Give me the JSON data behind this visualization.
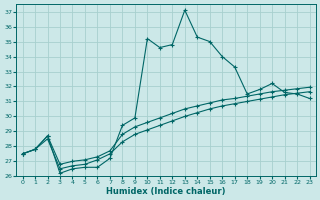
{
  "title": "",
  "xlabel": "Humidex (Indice chaleur)",
  "background_color": "#cce8e8",
  "grid_color": "#a8d0ce",
  "line_color": "#006666",
  "xlim": [
    -0.5,
    23.5
  ],
  "ylim": [
    26,
    37.5
  ],
  "xticks": [
    0,
    1,
    2,
    3,
    4,
    5,
    6,
    7,
    8,
    9,
    10,
    11,
    12,
    13,
    14,
    15,
    16,
    17,
    18,
    19,
    20,
    21,
    22,
    23
  ],
  "yticks": [
    26,
    27,
    28,
    29,
    30,
    31,
    32,
    33,
    34,
    35,
    36,
    37
  ],
  "series1_x": [
    0,
    1,
    2,
    3,
    4,
    5,
    6,
    7,
    8,
    9,
    10,
    11,
    12,
    13,
    14,
    15,
    16,
    17,
    18,
    19,
    20,
    21,
    22,
    23
  ],
  "series1_y": [
    27.5,
    27.8,
    28.7,
    26.2,
    26.5,
    26.6,
    26.6,
    27.2,
    29.4,
    29.9,
    35.2,
    34.6,
    34.8,
    37.1,
    35.3,
    35.0,
    34.0,
    33.3,
    31.5,
    31.8,
    32.2,
    31.6,
    31.5,
    31.2
  ],
  "series2_x": [
    0,
    1,
    2,
    3,
    4,
    5,
    6,
    7,
    8,
    9,
    10,
    11,
    12,
    13,
    14,
    15,
    16,
    17,
    18,
    19,
    20,
    21,
    22,
    23
  ],
  "series2_y": [
    27.5,
    27.8,
    28.7,
    26.8,
    27.0,
    27.1,
    27.3,
    27.7,
    28.8,
    29.3,
    29.6,
    29.9,
    30.2,
    30.5,
    30.7,
    30.9,
    31.1,
    31.2,
    31.35,
    31.5,
    31.65,
    31.75,
    31.85,
    31.95
  ],
  "series3_x": [
    0,
    1,
    2,
    3,
    4,
    5,
    6,
    7,
    8,
    9,
    10,
    11,
    12,
    13,
    14,
    15,
    16,
    17,
    18,
    19,
    20,
    21,
    22,
    23
  ],
  "series3_y": [
    27.5,
    27.8,
    28.5,
    26.5,
    26.7,
    26.8,
    27.1,
    27.5,
    28.3,
    28.8,
    29.1,
    29.4,
    29.7,
    30.0,
    30.25,
    30.5,
    30.7,
    30.85,
    31.0,
    31.15,
    31.3,
    31.45,
    31.55,
    31.65
  ]
}
